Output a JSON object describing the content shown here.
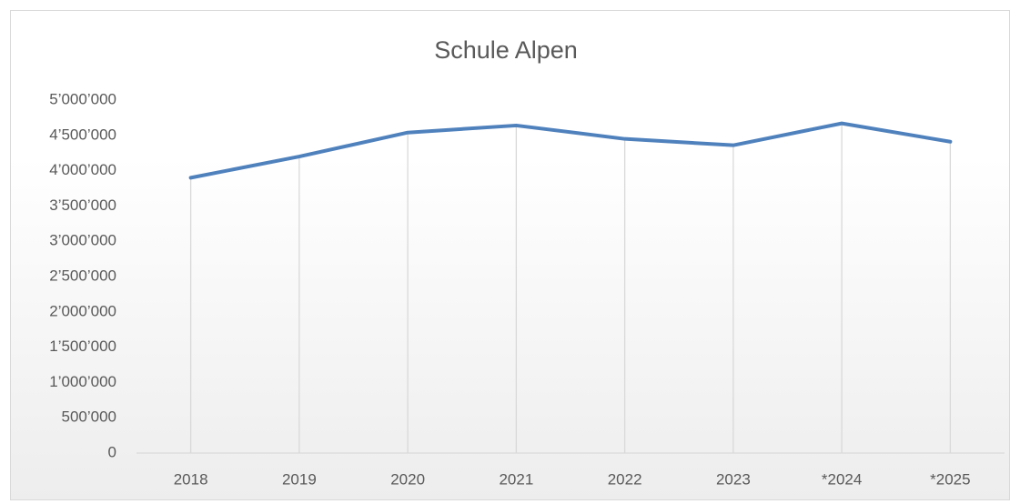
{
  "chart_data": {
    "type": "line",
    "title": "Schule Alpen",
    "categories": [
      "2018",
      "2019",
      "2020",
      "2021",
      "2022",
      "2023",
      "*2024",
      "*2025"
    ],
    "series": [
      {
        "name": "Schule Alpen",
        "color": "#4f81bd",
        "values": [
          3900000,
          4200000,
          4540000,
          4640000,
          4450000,
          4360000,
          4670000,
          4410000
        ]
      }
    ],
    "ylim": [
      0,
      5000000
    ],
    "yticks": [
      {
        "value": 0,
        "label": "0"
      },
      {
        "value": 500000,
        "label": "500’000"
      },
      {
        "value": 1000000,
        "label": "1’000’000"
      },
      {
        "value": 1500000,
        "label": "1’500’000"
      },
      {
        "value": 2000000,
        "label": "2’000’000"
      },
      {
        "value": 2500000,
        "label": "2’500’000"
      },
      {
        "value": 3000000,
        "label": "3’000’000"
      },
      {
        "value": 3500000,
        "label": "3’500’000"
      },
      {
        "value": 4000000,
        "label": "4’000’000"
      },
      {
        "value": 4500000,
        "label": "4’500’000"
      },
      {
        "value": 5000000,
        "label": "5’000’000"
      }
    ]
  }
}
